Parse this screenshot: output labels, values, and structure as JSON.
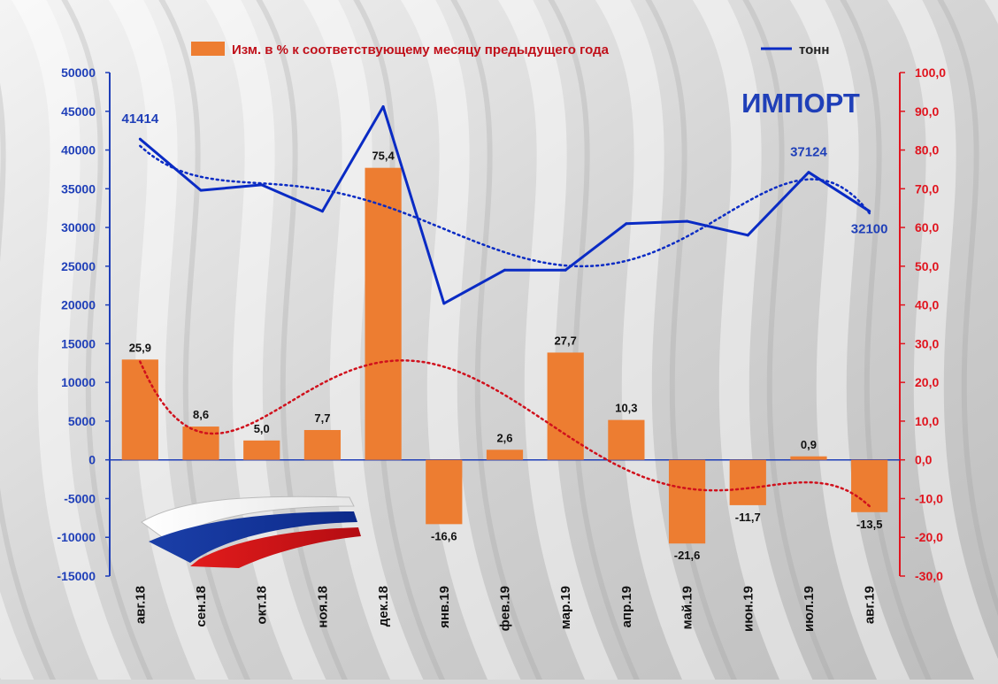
{
  "chart_data": {
    "type": "bar",
    "title": "ИМПОРТ",
    "categories": [
      "авг.18",
      "сен.18",
      "окт.18",
      "ноя.18",
      "дек.18",
      "янв.19",
      "фев.19",
      "мар.19",
      "апр.19",
      "май.19",
      "июн.19",
      "июл.19",
      "авг.19"
    ],
    "series": [
      {
        "name": "Изм. в % к соответствующему месяцу предыдущего года",
        "type": "bar",
        "axis": "right",
        "values": [
          25.9,
          8.6,
          5.0,
          7.7,
          75.4,
          -16.6,
          2.6,
          27.7,
          10.3,
          -21.6,
          -11.7,
          0.9,
          -13.5
        ],
        "labels": [
          "25,9",
          "8,6",
          "5,0",
          "7,7",
          "75,4",
          "-16,6",
          "2,6",
          "27,7",
          "10,3",
          "-21,6",
          "-11,7",
          "0,9",
          "-13,5"
        ]
      },
      {
        "name": "тонн",
        "type": "line",
        "axis": "left",
        "values": [
          41414,
          34800,
          35500,
          32100,
          45600,
          20200,
          24500,
          24500,
          30500,
          30800,
          29000,
          37124,
          32100
        ],
        "labels": [
          "41414",
          "",
          "",
          "",
          "",
          "",
          "",
          "",
          "",
          "",
          "",
          "37124",
          "32100"
        ]
      }
    ],
    "left_axis": {
      "ylim": [
        -15000,
        50000
      ],
      "ticks": [
        "50000",
        "45000",
        "40000",
        "35000",
        "30000",
        "25000",
        "20000",
        "15000",
        "10000",
        "5000",
        "0",
        "-5000",
        "-10000",
        "-15000"
      ]
    },
    "right_axis": {
      "ylim": [
        -30,
        100
      ],
      "ticks": [
        "100,0",
        "90,0",
        "80,0",
        "70,0",
        "60,0",
        "50,0",
        "40,0",
        "30,0",
        "20,0",
        "10,0",
        "0,0",
        "-10,0",
        "-20,0",
        "-30,0"
      ]
    },
    "trendlines": [
      "polynomial, dotted, blue (тонн)",
      "polynomial, dotted, red (Изм. в %)"
    ],
    "legend": "top",
    "grid": false,
    "colors": {
      "bar": "#ED7D31",
      "line": "#0A2BC4",
      "left_axis": "#1F3FB8",
      "right_axis": "#E0141E",
      "bar_trend": "#D0101C",
      "title": "#1F3FB8"
    }
  }
}
